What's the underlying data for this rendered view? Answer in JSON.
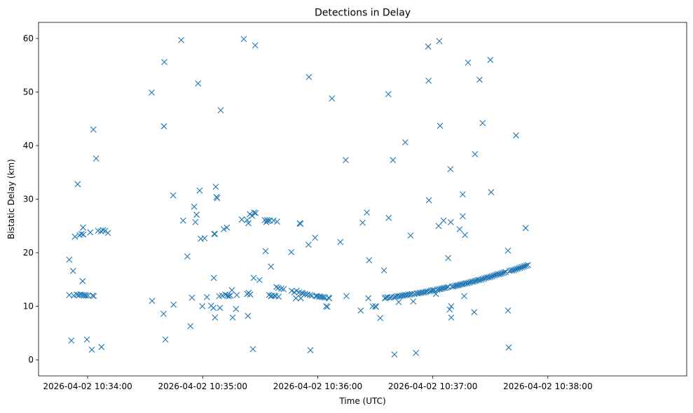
{
  "chart_data": {
    "type": "scatter",
    "title": "Detections in Delay",
    "xlabel": "Time (UTC)",
    "ylabel": "Bistatic Delay (km)",
    "marker": "x",
    "color": "#1f77b4",
    "grid": false,
    "x_units": "seconds since 2026-04-02 10:33:00",
    "xlim": [
      34.4,
      372.4
    ],
    "ylim": [
      -3.0,
      63.0
    ],
    "x_ticks": [
      {
        "value": 60,
        "label": "2026-04-02 10:34:00"
      },
      {
        "value": 120,
        "label": "2026-04-02 10:35:00"
      },
      {
        "value": 180,
        "label": "2026-04-02 10:36:00"
      },
      {
        "value": 240,
        "label": "2026-04-02 10:37:00"
      },
      {
        "value": 300,
        "label": "2026-04-02 10:38:00"
      }
    ],
    "y_ticks": [
      {
        "value": 0,
        "label": "0"
      },
      {
        "value": 10,
        "label": "10"
      },
      {
        "value": 20,
        "label": "20"
      },
      {
        "value": 30,
        "label": "30"
      },
      {
        "value": 40,
        "label": "40"
      },
      {
        "value": 50,
        "label": "50"
      },
      {
        "value": 60,
        "label": "60"
      }
    ],
    "points": [
      [
        50.4,
        18.7
      ],
      [
        50.4,
        12.1
      ],
      [
        51.5,
        3.6
      ],
      [
        52.4,
        16.6
      ],
      [
        52.8,
        12.0
      ],
      [
        53.4,
        23.0
      ],
      [
        54.4,
        12.2
      ],
      [
        54.8,
        32.8
      ],
      [
        55.4,
        12.1
      ],
      [
        55.8,
        23.3
      ],
      [
        56.2,
        12.2
      ],
      [
        56.8,
        23.5
      ],
      [
        57.2,
        12.1
      ],
      [
        57.4,
        14.7
      ],
      [
        57.6,
        24.7
      ],
      [
        57.8,
        23.4
      ],
      [
        58.2,
        12.0
      ],
      [
        58.6,
        12.1
      ],
      [
        59.2,
        12.0
      ],
      [
        59.6,
        3.8
      ],
      [
        60.2,
        12.0
      ],
      [
        61.4,
        23.8
      ],
      [
        62.2,
        1.9
      ],
      [
        62.6,
        12.0
      ],
      [
        63.0,
        43.0
      ],
      [
        63.2,
        11.9
      ],
      [
        64.4,
        37.6
      ],
      [
        65.4,
        24.1
      ],
      [
        67.0,
        24.0
      ],
      [
        67.2,
        2.4
      ],
      [
        68.0,
        24.2
      ],
      [
        69.2,
        24.1
      ],
      [
        70.6,
        23.7
      ],
      [
        93.4,
        49.9
      ],
      [
        93.6,
        11.0
      ],
      [
        99.6,
        8.6
      ],
      [
        99.8,
        43.6
      ],
      [
        100.0,
        55.6
      ],
      [
        100.6,
        3.8
      ],
      [
        104.8,
        10.3
      ],
      [
        104.6,
        30.7
      ],
      [
        108.8,
        59.7
      ],
      [
        109.8,
        26.0
      ],
      [
        112.0,
        19.3
      ],
      [
        113.6,
        6.3
      ],
      [
        114.4,
        11.6
      ],
      [
        115.6,
        28.6
      ],
      [
        116.2,
        25.7
      ],
      [
        116.8,
        27.1
      ],
      [
        117.6,
        51.6
      ],
      [
        118.4,
        31.6
      ],
      [
        119.0,
        22.6
      ],
      [
        119.8,
        10.0
      ],
      [
        121.0,
        22.7
      ],
      [
        122.2,
        11.7
      ],
      [
        124.4,
        10.1
      ],
      [
        125.6,
        9.7
      ],
      [
        125.8,
        15.3
      ],
      [
        126.0,
        23.5
      ],
      [
        126.4,
        23.5
      ],
      [
        126.8,
        32.3
      ],
      [
        127.2,
        30.4
      ],
      [
        127.6,
        30.2
      ],
      [
        126.4,
        7.9
      ],
      [
        128.6,
        11.9
      ],
      [
        129.4,
        46.6
      ],
      [
        129.0,
        9.7
      ],
      [
        130.2,
        12.0
      ],
      [
        131.0,
        24.4
      ],
      [
        131.8,
        12.2
      ],
      [
        132.6,
        24.7
      ],
      [
        132.8,
        12.0
      ],
      [
        133.6,
        11.9
      ],
      [
        134.4,
        12.0
      ],
      [
        135.2,
        13.0
      ],
      [
        135.6,
        7.9
      ],
      [
        137.4,
        9.5
      ],
      [
        137.8,
        12.1
      ],
      [
        140.4,
        26.2
      ],
      [
        141.4,
        59.9
      ],
      [
        143.2,
        26.1
      ],
      [
        143.2,
        12.3
      ],
      [
        143.8,
        25.5
      ],
      [
        144.0,
        12.5
      ],
      [
        143.6,
        8.2
      ],
      [
        144.6,
        27.2
      ],
      [
        144.8,
        12.2
      ],
      [
        145.8,
        26.9
      ],
      [
        146.2,
        2.0
      ],
      [
        146.8,
        27.5
      ],
      [
        146.6,
        15.3
      ],
      [
        147.4,
        58.7
      ],
      [
        147.6,
        27.4
      ],
      [
        149.6,
        14.9
      ],
      [
        152.4,
        26.1
      ],
      [
        152.8,
        20.3
      ],
      [
        153.2,
        25.7
      ],
      [
        153.6,
        26.1
      ],
      [
        154.0,
        25.9
      ],
      [
        154.6,
        12.1
      ],
      [
        155.0,
        26.0
      ],
      [
        155.6,
        11.9
      ],
      [
        155.6,
        17.4
      ],
      [
        156.2,
        12.0
      ],
      [
        157.0,
        26.0
      ],
      [
        157.4,
        12.0
      ],
      [
        158.0,
        11.9
      ],
      [
        158.4,
        13.6
      ],
      [
        158.8,
        25.8
      ],
      [
        159.4,
        13.4
      ],
      [
        159.6,
        11.8
      ],
      [
        161.0,
        13.3
      ],
      [
        162.2,
        13.2
      ],
      [
        166.2,
        20.1
      ],
      [
        166.4,
        12.9
      ],
      [
        167.8,
        12.6
      ],
      [
        168.6,
        11.5
      ],
      [
        169.0,
        12.9
      ],
      [
        170.2,
        12.6
      ],
      [
        170.6,
        25.5
      ],
      [
        171.0,
        25.4
      ],
      [
        171.2,
        11.5
      ],
      [
        171.6,
        12.5
      ],
      [
        172.2,
        12.4
      ],
      [
        173.4,
        12.3
      ],
      [
        174.6,
        12.2
      ],
      [
        175.2,
        21.5
      ],
      [
        175.4,
        52.8
      ],
      [
        176.0,
        12.1
      ],
      [
        176.2,
        1.8
      ],
      [
        177.0,
        12.0
      ],
      [
        178.6,
        22.8
      ],
      [
        179.0,
        11.9
      ],
      [
        179.6,
        11.9
      ],
      [
        180.6,
        11.8
      ],
      [
        181.4,
        11.8
      ],
      [
        182.2,
        11.7
      ],
      [
        183.0,
        11.7
      ],
      [
        183.8,
        11.6
      ],
      [
        184.4,
        10.0
      ],
      [
        185.0,
        9.9
      ],
      [
        185.6,
        11.6
      ],
      [
        186.0,
        11.5
      ],
      [
        187.4,
        48.8
      ],
      [
        191.8,
        22.0
      ],
      [
        194.6,
        37.3
      ],
      [
        195.0,
        11.9
      ],
      [
        202.4,
        9.2
      ],
      [
        203.4,
        25.6
      ],
      [
        205.6,
        27.5
      ],
      [
        206.8,
        18.6
      ],
      [
        206.4,
        11.5
      ],
      [
        208.6,
        10.0
      ],
      [
        210.0,
        10.0
      ],
      [
        210.4,
        9.9
      ],
      [
        212.6,
        7.8
      ],
      [
        214.6,
        16.7
      ],
      [
        215.0,
        11.5
      ],
      [
        215.6,
        11.6
      ],
      [
        216.4,
        11.7
      ],
      [
        216.8,
        49.6
      ],
      [
        217.0,
        26.5
      ],
      [
        217.6,
        11.6
      ],
      [
        218.4,
        11.7
      ],
      [
        219.2,
        37.3
      ],
      [
        219.8,
        11.7
      ],
      [
        220.0,
        1.0
      ],
      [
        220.6,
        11.8
      ],
      [
        221.4,
        11.9
      ],
      [
        222.2,
        10.8
      ],
      [
        222.4,
        11.9
      ],
      [
        223.2,
        11.9
      ],
      [
        224.0,
        12.0
      ],
      [
        224.8,
        12.0
      ],
      [
        225.6,
        40.6
      ],
      [
        225.6,
        12.1
      ],
      [
        226.4,
        12.1
      ],
      [
        227.2,
        12.2
      ],
      [
        228.4,
        23.2
      ],
      [
        228.2,
        12.2
      ],
      [
        229.0,
        12.3
      ],
      [
        229.8,
        10.9
      ],
      [
        230.4,
        12.3
      ],
      [
        231.2,
        1.3
      ],
      [
        231.6,
        12.4
      ],
      [
        232.4,
        12.4
      ],
      [
        233.2,
        12.5
      ],
      [
        234.0,
        12.5
      ],
      [
        234.8,
        12.6
      ],
      [
        235.6,
        12.6
      ],
      [
        236.4,
        12.7
      ],
      [
        237.2,
        12.8
      ],
      [
        237.6,
        58.5
      ],
      [
        237.8,
        52.1
      ],
      [
        238.0,
        29.8
      ],
      [
        238.4,
        12.8
      ],
      [
        239.2,
        12.9
      ],
      [
        240.0,
        13.0
      ],
      [
        240.8,
        13.0
      ],
      [
        241.6,
        12.3
      ],
      [
        242.4,
        13.1
      ],
      [
        243.0,
        25.0
      ],
      [
        243.2,
        13.2
      ],
      [
        243.4,
        59.5
      ],
      [
        243.8,
        43.7
      ],
      [
        244.0,
        13.2
      ],
      [
        244.8,
        13.3
      ],
      [
        245.6,
        26.0
      ],
      [
        245.6,
        13.4
      ],
      [
        246.4,
        13.4
      ],
      [
        247.2,
        13.5
      ],
      [
        248.0,
        19.0
      ],
      [
        248.0,
        13.6
      ],
      [
        248.8,
        9.4
      ],
      [
        249.2,
        35.6
      ],
      [
        249.4,
        25.7
      ],
      [
        249.6,
        10.0
      ],
      [
        249.6,
        7.9
      ],
      [
        250.0,
        13.7
      ],
      [
        250.8,
        13.7
      ],
      [
        251.6,
        13.8
      ],
      [
        252.4,
        13.9
      ],
      [
        253.2,
        13.9
      ],
      [
        254.0,
        24.4
      ],
      [
        254.0,
        14.0
      ],
      [
        254.8,
        14.1
      ],
      [
        255.6,
        30.9
      ],
      [
        255.6,
        26.8
      ],
      [
        255.6,
        14.1
      ],
      [
        256.4,
        11.9
      ],
      [
        256.4,
        14.2
      ],
      [
        256.8,
        23.3
      ],
      [
        257.2,
        14.3
      ],
      [
        258.0,
        14.3
      ],
      [
        258.4,
        55.5
      ],
      [
        258.8,
        14.4
      ],
      [
        259.6,
        14.5
      ],
      [
        260.4,
        14.6
      ],
      [
        261.2,
        14.6
      ],
      [
        261.6,
        8.9
      ],
      [
        262.0,
        38.4
      ],
      [
        262.0,
        14.7
      ],
      [
        262.8,
        14.8
      ],
      [
        263.6,
        14.9
      ],
      [
        264.4,
        52.3
      ],
      [
        264.4,
        14.9
      ],
      [
        265.2,
        15.0
      ],
      [
        266.0,
        44.2
      ],
      [
        266.0,
        15.1
      ],
      [
        266.8,
        15.2
      ],
      [
        267.6,
        15.3
      ],
      [
        268.4,
        15.4
      ],
      [
        269.2,
        15.4
      ],
      [
        270.0,
        56.0
      ],
      [
        270.0,
        15.5
      ],
      [
        270.4,
        31.3
      ],
      [
        270.8,
        15.6
      ],
      [
        271.6,
        15.7
      ],
      [
        272.4,
        15.8
      ],
      [
        273.2,
        15.9
      ],
      [
        274.0,
        16.0
      ],
      [
        274.8,
        16.0
      ],
      [
        275.6,
        16.1
      ],
      [
        276.4,
        16.2
      ],
      [
        277.2,
        16.3
      ],
      [
        278.0,
        16.4
      ],
      [
        279.2,
        20.4
      ],
      [
        279.2,
        9.2
      ],
      [
        279.6,
        2.3
      ],
      [
        280.0,
        16.6
      ],
      [
        280.8,
        16.7
      ],
      [
        281.6,
        16.7
      ],
      [
        282.4,
        16.8
      ],
      [
        283.2,
        16.9
      ],
      [
        283.4,
        41.9
      ],
      [
        284.0,
        17.0
      ],
      [
        284.8,
        17.1
      ],
      [
        285.6,
        17.2
      ],
      [
        286.4,
        17.3
      ],
      [
        287.2,
        17.4
      ],
      [
        288.0,
        17.5
      ],
      [
        288.4,
        24.6
      ],
      [
        288.8,
        17.6
      ],
      [
        289.6,
        17.7
      ]
    ]
  }
}
